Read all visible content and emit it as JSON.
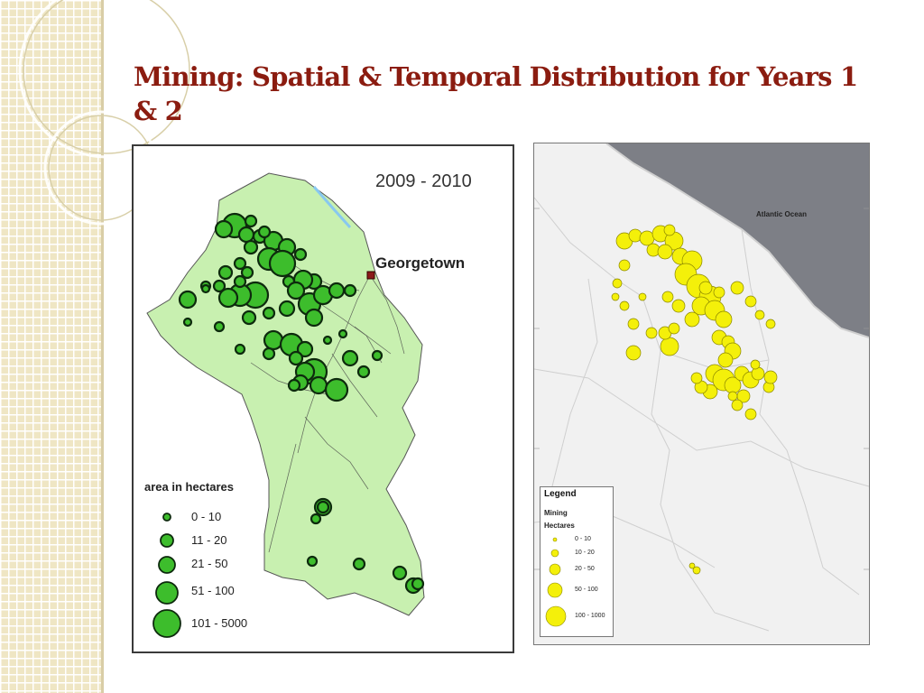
{
  "slide": {
    "title": "Mining: Spatial & Temporal Distribution for Years 1 & 2"
  },
  "left_map": {
    "year_label": "2009 - 2010",
    "city_label": "Georgetown",
    "legend": {
      "title": "area in hectares",
      "items": [
        {
          "label": "0 - 10"
        },
        {
          "label": "11 - 20"
        },
        {
          "label": "21 - 50"
        },
        {
          "label": "51 - 100"
        },
        {
          "label": "101 - 5000"
        }
      ]
    },
    "colors": {
      "land": "#c8f0b0",
      "circle": "#3dbd2c",
      "outline": "#0d2a0d",
      "city": "#8b1a1a"
    }
  },
  "right_map": {
    "ocean_label": "Atlantic Ocean",
    "legend": {
      "title": "Legend",
      "subtitle1": "Mining",
      "subtitle2": "Hectares",
      "items": [
        {
          "label": "0 - 10"
        },
        {
          "label": "10 - 20"
        },
        {
          "label": "20 - 50"
        },
        {
          "label": "50 - 100"
        },
        {
          "label": "100 - 1000"
        }
      ]
    },
    "colors": {
      "ocean": "#7d7f86",
      "land": "#eeeeee",
      "circle": "#f4f00a",
      "outline": "#8a8600"
    }
  }
}
